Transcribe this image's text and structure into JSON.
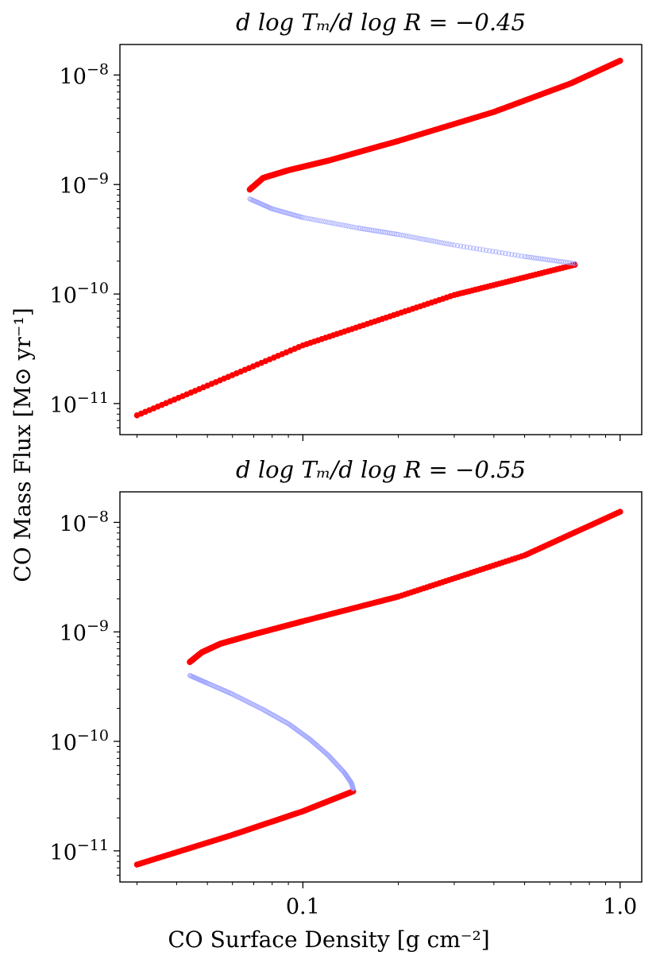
{
  "figure": {
    "ylabel": "CO Mass Flux [M⊙ yr⁻¹]",
    "xlabel": "CO Surface Density [g cm⁻²]"
  },
  "chart_data": [
    {
      "type": "scatter",
      "title": "d log Tₘ/d log R = −0.45",
      "xscale": "log",
      "yscale": "log",
      "xlim": [
        0.0265,
        1.17
      ],
      "ylim": [
        5.2e-12,
        1.9e-08
      ],
      "xticks": [
        {
          "value": 0.1,
          "label": ""
        },
        {
          "value": 1.0,
          "label": ""
        }
      ],
      "yticks": [
        {
          "value": 1e-11,
          "base": "10",
          "exp": "−11"
        },
        {
          "value": 1e-10,
          "base": "10",
          "exp": "−10"
        },
        {
          "value": 1e-09,
          "base": "10",
          "exp": "−9"
        },
        {
          "value": 1e-08,
          "base": "10",
          "exp": "−8"
        }
      ],
      "colors": {
        "stable": "#ff0000",
        "unstable": "#9fa6ff"
      },
      "series": [
        {
          "role": "stable-lower",
          "x": [
            0.03,
            0.1,
            0.3,
            0.72
          ],
          "y": [
            7.8e-12,
            3.4e-11,
            9.8e-11,
            1.85e-10
          ]
        },
        {
          "role": "stable-upper",
          "x": [
            0.068,
            0.075,
            0.09,
            0.12,
            0.2,
            0.4,
            0.7,
            1.0
          ],
          "y": [
            9e-10,
            1.15e-09,
            1.35e-09,
            1.65e-09,
            2.5e-09,
            4.6e-09,
            8.4e-09,
            1.35e-08
          ]
        },
        {
          "role": "unstable",
          "x": [
            0.068,
            0.08,
            0.1,
            0.15,
            0.2,
            0.3,
            0.5,
            0.72
          ],
          "y": [
            7.4e-10,
            6e-10,
            5e-10,
            4e-10,
            3.5e-10,
            2.8e-10,
            2.2e-10,
            1.9e-10
          ]
        }
      ]
    },
    {
      "type": "scatter",
      "title": "d log Tₘ/d log R = −0.55",
      "xscale": "log",
      "yscale": "log",
      "xlim": [
        0.0265,
        1.17
      ],
      "ylim": [
        5.2e-12,
        1.9e-08
      ],
      "xticks": [
        {
          "value": 0.1,
          "label": "0.1"
        },
        {
          "value": 1.0,
          "label": "1.0"
        }
      ],
      "yticks": [
        {
          "value": 1e-11,
          "base": "10",
          "exp": "−11"
        },
        {
          "value": 1e-10,
          "base": "10",
          "exp": "−10"
        },
        {
          "value": 1e-09,
          "base": "10",
          "exp": "−9"
        },
        {
          "value": 1e-08,
          "base": "10",
          "exp": "−8"
        }
      ],
      "colors": {
        "stable": "#ff0000",
        "unstable": "#9fa6ff"
      },
      "series": [
        {
          "role": "stable-lower",
          "x": [
            0.03,
            0.06,
            0.1,
            0.144
          ],
          "y": [
            7.5e-12,
            1.4e-11,
            2.3e-11,
            3.5e-11
          ]
        },
        {
          "role": "stable-upper",
          "x": [
            0.044,
            0.048,
            0.055,
            0.07,
            0.1,
            0.2,
            0.5,
            1.0
          ],
          "y": [
            5.3e-10,
            6.5e-10,
            7.8e-10,
            9.5e-10,
            1.25e-09,
            2.1e-09,
            5e-09,
            1.25e-08
          ]
        },
        {
          "role": "unstable",
          "x": [
            0.044,
            0.05,
            0.06,
            0.075,
            0.09,
            0.105,
            0.12,
            0.135,
            0.142,
            0.144
          ],
          "y": [
            4e-10,
            3.4e-10,
            2.7e-10,
            1.95e-10,
            1.45e-10,
            1.05e-10,
            7.5e-11,
            5.2e-11,
            4.2e-11,
            3.7e-11
          ]
        }
      ]
    }
  ]
}
